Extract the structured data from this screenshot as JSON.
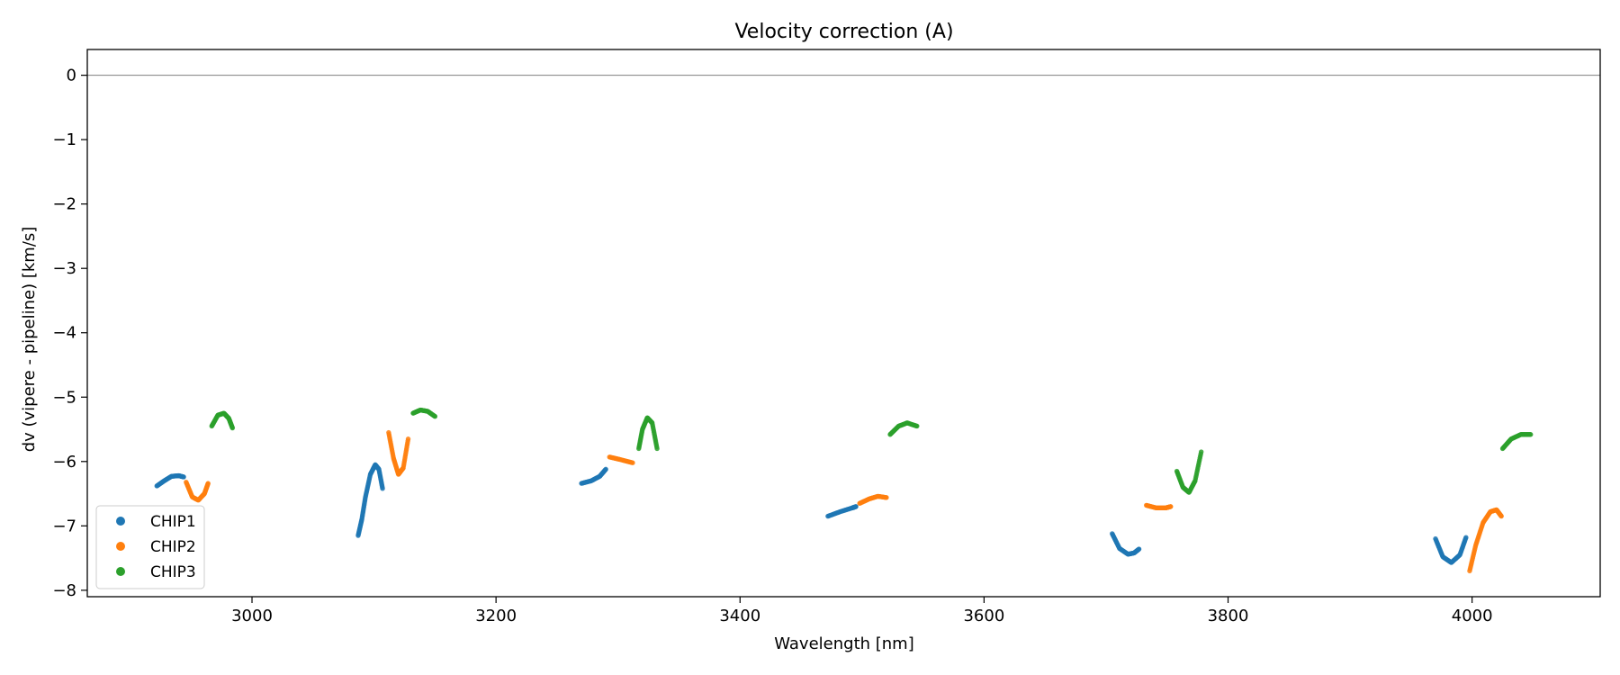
{
  "chart_data": {
    "type": "scatter",
    "title": "Velocity correction (A)",
    "xlabel": "Wavelength [nm]",
    "ylabel": "dv (vipere - pipeline) [km/s]",
    "xlim": [
      2865,
      4105
    ],
    "ylim": [
      -8.1,
      0.4
    ],
    "xticks": [
      3000,
      3200,
      3400,
      3600,
      3800,
      4000
    ],
    "yticks": [
      0,
      -1,
      -2,
      -3,
      -4,
      -5,
      -6,
      -7,
      -8
    ],
    "xtick_labels": [
      "3000",
      "3200",
      "3400",
      "3600",
      "3800",
      "4000"
    ],
    "ytick_labels": [
      "0",
      "−1",
      "−2",
      "−3",
      "−4",
      "−5",
      "−6",
      "−7",
      "−8"
    ],
    "reference_line": 0,
    "legend_position": "lower-left",
    "series": [
      {
        "name": "CHIP1",
        "color": "#1f77b4",
        "segments": [
          [
            [
              2922,
              -6.38
            ],
            [
              2928,
              -6.3
            ],
            [
              2934,
              -6.23
            ],
            [
              2940,
              -6.22
            ],
            [
              2944,
              -6.24
            ]
          ],
          [
            [
              3087,
              -7.15
            ],
            [
              3090,
              -6.9
            ],
            [
              3093,
              -6.55
            ],
            [
              3097,
              -6.2
            ],
            [
              3101,
              -6.05
            ],
            [
              3104,
              -6.12
            ],
            [
              3107,
              -6.42
            ]
          ],
          [
            [
              3270,
              -6.34
            ],
            [
              3278,
              -6.3
            ],
            [
              3285,
              -6.23
            ],
            [
              3290,
              -6.12
            ]
          ],
          [
            [
              3472,
              -6.85
            ],
            [
              3482,
              -6.78
            ],
            [
              3492,
              -6.72
            ],
            [
              3495,
              -6.7
            ]
          ],
          [
            [
              3705,
              -7.12
            ],
            [
              3711,
              -7.35
            ],
            [
              3718,
              -7.44
            ],
            [
              3723,
              -7.42
            ],
            [
              3727,
              -7.36
            ]
          ],
          [
            [
              3970,
              -7.2
            ],
            [
              3976,
              -7.48
            ],
            [
              3983,
              -7.57
            ],
            [
              3990,
              -7.45
            ],
            [
              3995,
              -7.18
            ]
          ]
        ]
      },
      {
        "name": "CHIP2",
        "color": "#ff7f0e",
        "segments": [
          [
            [
              2946,
              -6.32
            ],
            [
              2951,
              -6.55
            ],
            [
              2956,
              -6.6
            ],
            [
              2961,
              -6.5
            ],
            [
              2964,
              -6.34
            ]
          ],
          [
            [
              3112,
              -5.55
            ],
            [
              3116,
              -5.95
            ],
            [
              3120,
              -6.2
            ],
            [
              3124,
              -6.1
            ],
            [
              3128,
              -5.65
            ]
          ],
          [
            [
              3293,
              -5.93
            ],
            [
              3302,
              -5.97
            ],
            [
              3312,
              -6.02
            ]
          ],
          [
            [
              3498,
              -6.65
            ],
            [
              3506,
              -6.58
            ],
            [
              3513,
              -6.54
            ],
            [
              3520,
              -6.56
            ]
          ],
          [
            [
              3733,
              -6.68
            ],
            [
              3741,
              -6.72
            ],
            [
              3749,
              -6.72
            ],
            [
              3753,
              -6.7
            ]
          ],
          [
            [
              3998,
              -7.7
            ],
            [
              4003,
              -7.3
            ],
            [
              4009,
              -6.95
            ],
            [
              4015,
              -6.78
            ],
            [
              4020,
              -6.75
            ],
            [
              4024,
              -6.85
            ]
          ]
        ]
      },
      {
        "name": "CHIP3",
        "color": "#2ca02c",
        "segments": [
          [
            [
              2967,
              -5.45
            ],
            [
              2972,
              -5.28
            ],
            [
              2977,
              -5.25
            ],
            [
              2981,
              -5.33
            ],
            [
              2984,
              -5.48
            ]
          ],
          [
            [
              3132,
              -5.25
            ],
            [
              3138,
              -5.2
            ],
            [
              3144,
              -5.22
            ],
            [
              3150,
              -5.3
            ]
          ],
          [
            [
              3317,
              -5.8
            ],
            [
              3320,
              -5.5
            ],
            [
              3324,
              -5.32
            ],
            [
              3328,
              -5.4
            ],
            [
              3332,
              -5.8
            ]
          ],
          [
            [
              3523,
              -5.58
            ],
            [
              3530,
              -5.45
            ],
            [
              3537,
              -5.4
            ],
            [
              3545,
              -5.45
            ]
          ],
          [
            [
              3758,
              -6.15
            ],
            [
              3763,
              -6.4
            ],
            [
              3768,
              -6.48
            ],
            [
              3773,
              -6.3
            ],
            [
              3778,
              -5.85
            ]
          ],
          [
            [
              4025,
              -5.8
            ],
            [
              4032,
              -5.65
            ],
            [
              4040,
              -5.58
            ],
            [
              4048,
              -5.58
            ]
          ]
        ]
      }
    ]
  }
}
